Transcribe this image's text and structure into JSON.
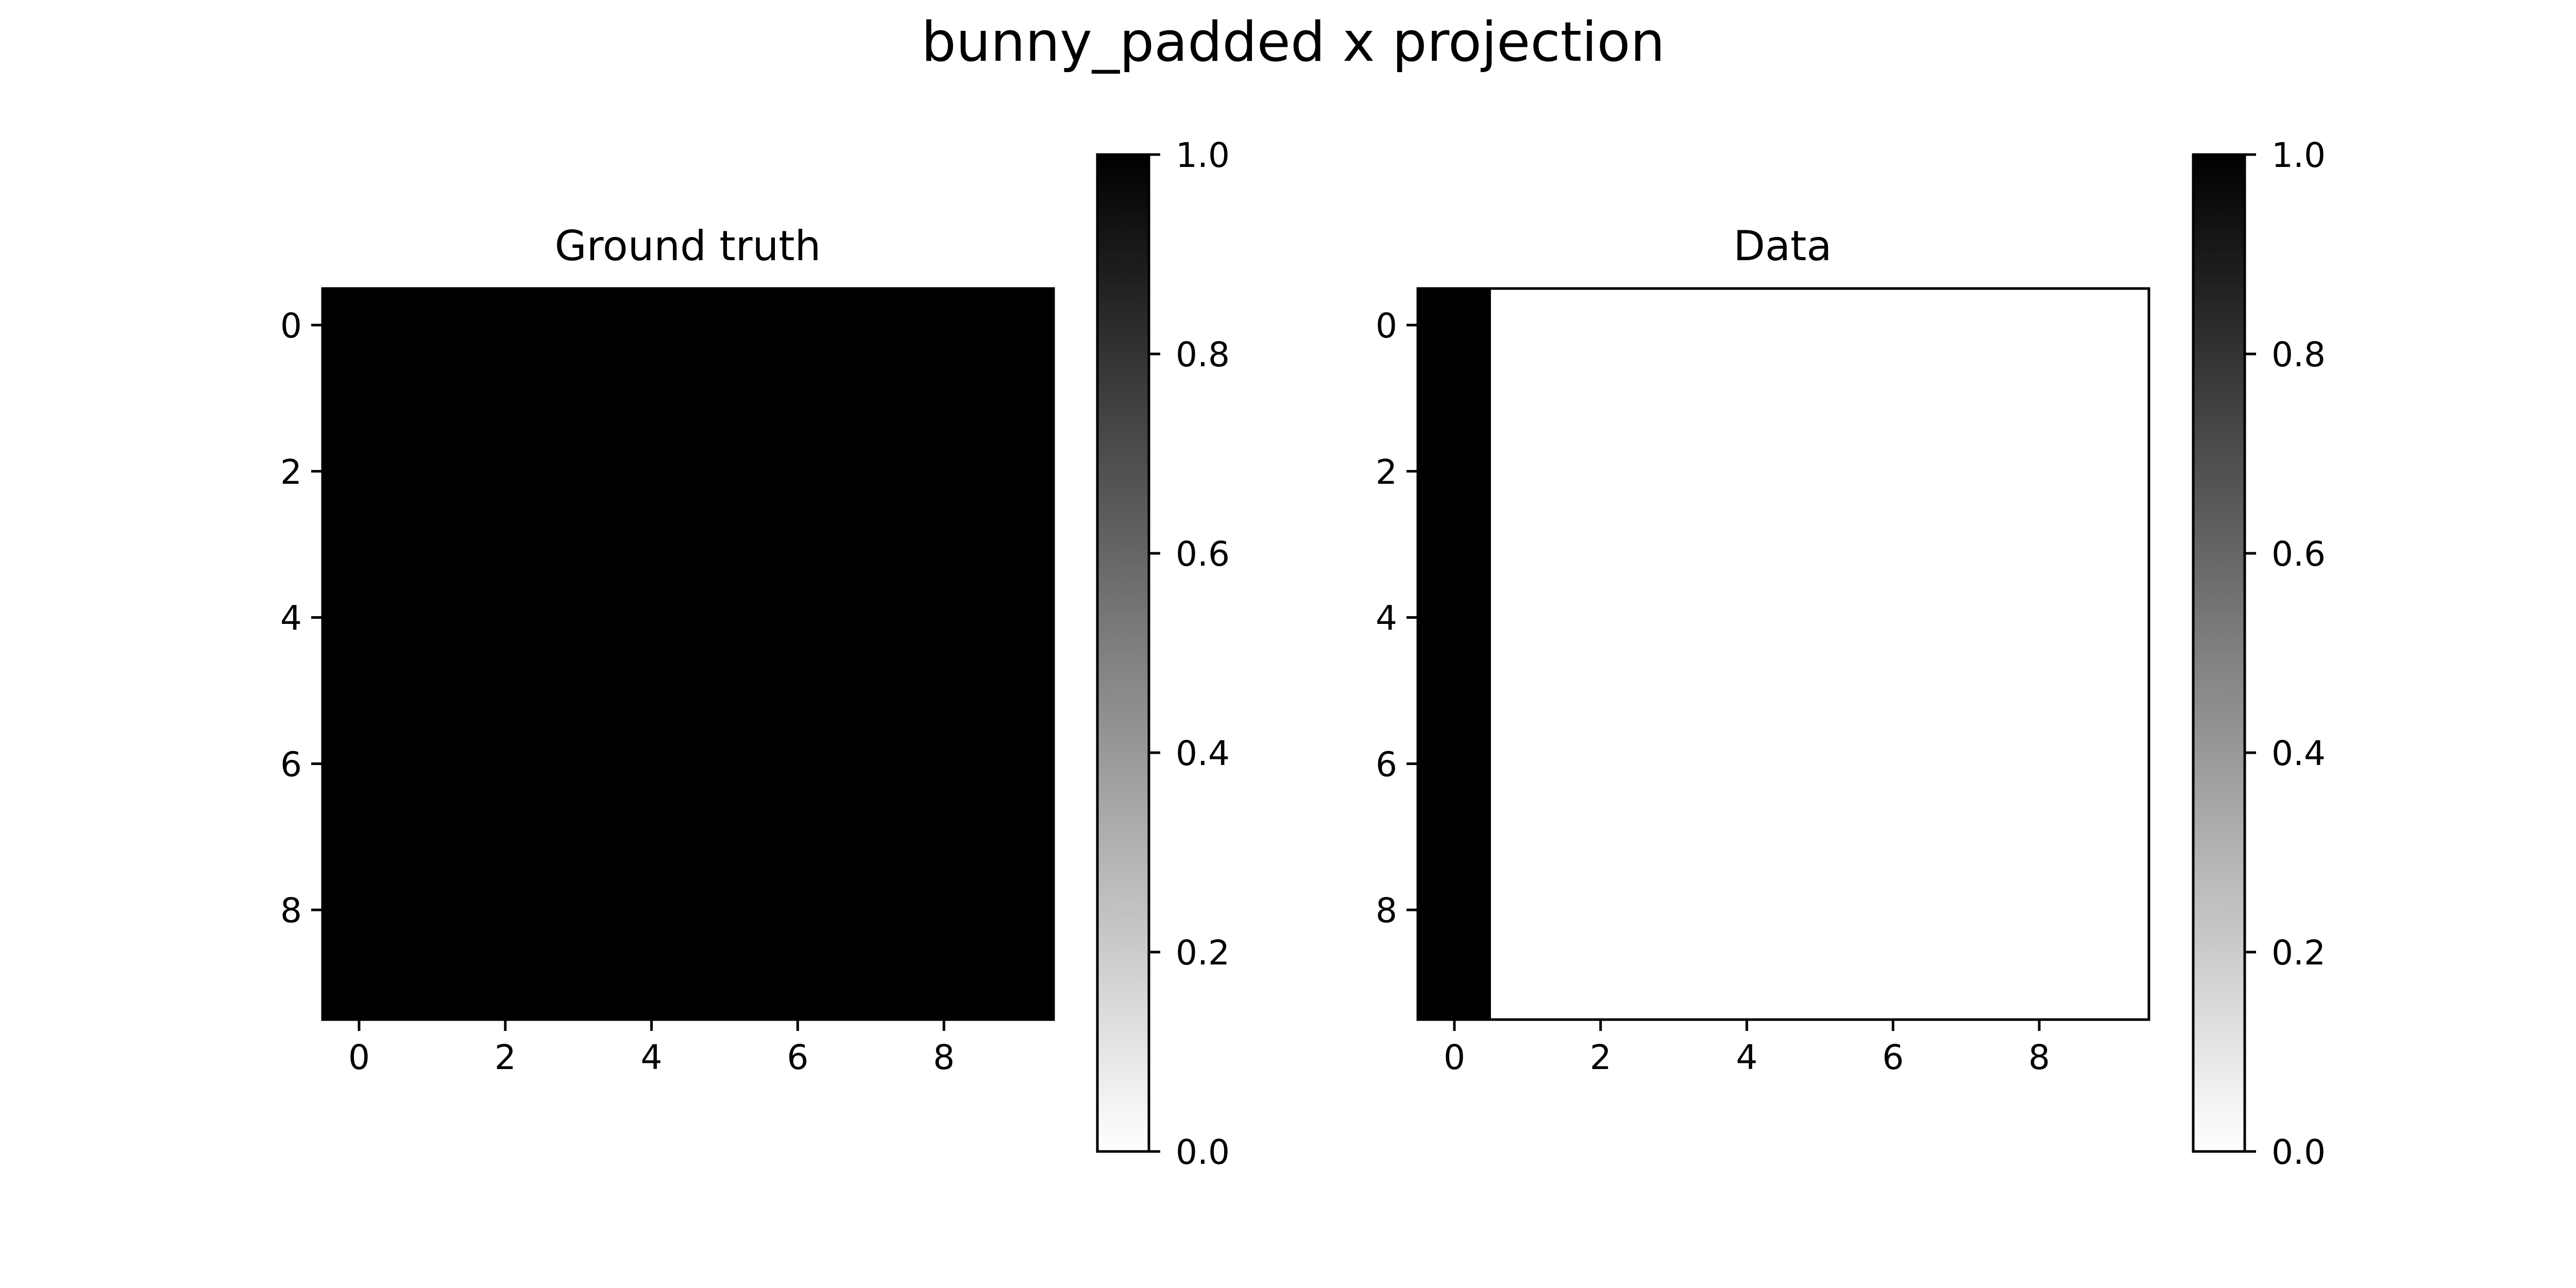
{
  "figure_title": "bunny_padded x projection",
  "colors": {
    "image_high": "#000000",
    "image_low": "#ffffff",
    "axes_stroke": "#000000"
  },
  "chart_data": [
    {
      "type": "heatmap",
      "title": "Ground truth",
      "xlabel": "",
      "ylabel": "",
      "colormap": "gray_r",
      "grid": false,
      "x_ticks": [
        "0",
        "2",
        "4",
        "6",
        "8"
      ],
      "y_ticks": [
        "0",
        "2",
        "4",
        "6",
        "8"
      ],
      "x_range": [
        -0.5,
        9.5
      ],
      "y_range": [
        -0.5,
        9.5
      ],
      "values": [
        [
          1,
          1,
          1,
          1,
          1,
          1,
          1,
          1,
          1,
          1
        ],
        [
          1,
          1,
          1,
          1,
          1,
          1,
          1,
          1,
          1,
          1
        ],
        [
          1,
          1,
          1,
          1,
          1,
          1,
          1,
          1,
          1,
          1
        ],
        [
          1,
          1,
          1,
          1,
          1,
          1,
          1,
          1,
          1,
          1
        ],
        [
          1,
          1,
          1,
          1,
          1,
          1,
          1,
          1,
          1,
          1
        ],
        [
          1,
          1,
          1,
          1,
          1,
          1,
          1,
          1,
          1,
          1
        ],
        [
          1,
          1,
          1,
          1,
          1,
          1,
          1,
          1,
          1,
          1
        ],
        [
          1,
          1,
          1,
          1,
          1,
          1,
          1,
          1,
          1,
          1
        ],
        [
          1,
          1,
          1,
          1,
          1,
          1,
          1,
          1,
          1,
          1
        ],
        [
          1,
          1,
          1,
          1,
          1,
          1,
          1,
          1,
          1,
          1
        ]
      ],
      "colorbar": {
        "range": [
          0,
          1
        ],
        "ticks": [
          "0.0",
          "0.2",
          "0.4",
          "0.6",
          "0.8",
          "1.0"
        ]
      }
    },
    {
      "type": "heatmap",
      "title": "Data",
      "xlabel": "",
      "ylabel": "",
      "colormap": "gray_r",
      "grid": false,
      "x_ticks": [
        "0",
        "2",
        "4",
        "6",
        "8"
      ],
      "y_ticks": [
        "0",
        "2",
        "4",
        "6",
        "8"
      ],
      "x_range": [
        -0.5,
        9.5
      ],
      "y_range": [
        -0.5,
        9.5
      ],
      "values": [
        [
          1,
          0,
          0,
          0,
          0,
          0,
          0,
          0,
          0,
          0
        ],
        [
          1,
          0,
          0,
          0,
          0,
          0,
          0,
          0,
          0,
          0
        ],
        [
          1,
          0,
          0,
          0,
          0,
          0,
          0,
          0,
          0,
          0
        ],
        [
          1,
          0,
          0,
          0,
          0,
          0,
          0,
          0,
          0,
          0
        ],
        [
          1,
          0,
          0,
          0,
          0,
          0,
          0,
          0,
          0,
          0
        ],
        [
          1,
          0,
          0,
          0,
          0,
          0,
          0,
          0,
          0,
          0
        ],
        [
          1,
          0,
          0,
          0,
          0,
          0,
          0,
          0,
          0,
          0
        ],
        [
          1,
          0,
          0,
          0,
          0,
          0,
          0,
          0,
          0,
          0
        ],
        [
          1,
          0,
          0,
          0,
          0,
          0,
          0,
          0,
          0,
          0
        ],
        [
          1,
          0,
          0,
          0,
          0,
          0,
          0,
          0,
          0,
          0
        ]
      ],
      "colorbar": {
        "range": [
          0,
          1
        ],
        "ticks": [
          "0.0",
          "0.2",
          "0.4",
          "0.6",
          "0.8",
          "1.0"
        ]
      }
    }
  ]
}
